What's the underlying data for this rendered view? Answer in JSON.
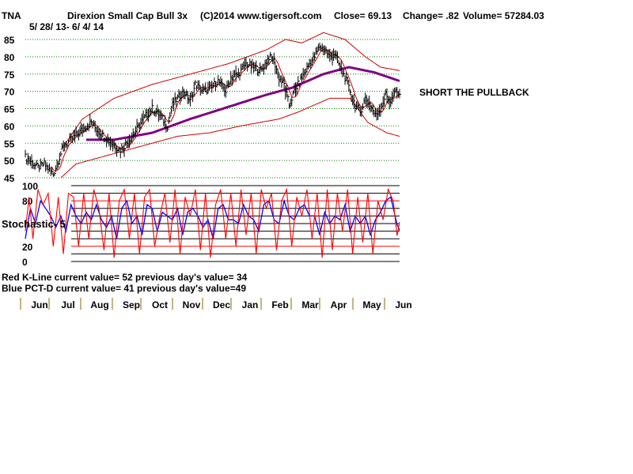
{
  "header": {
    "ticker": "TNA",
    "name": "Direxion Small Cap Bull 3x",
    "site": "(C)2014 www.tigersoft.com",
    "close": "Close=  69.13",
    "change": "Change= .82",
    "volume": "Volume= 57284.03",
    "date_range": "5/ 28/ 13- 6/ 4/ 14"
  },
  "annotation": "SHORT THE PULLBACK",
  "stochastic_label": "Stochastic- 5",
  "footer": {
    "red_line": "Red K-Line current value= 52 previous day's value= 34",
    "blue_line": "Blue PCT-D current value= 41 previous day's value=49"
  },
  "colors": {
    "price_bars": "#000000",
    "bands": "#cc0000",
    "ma": "#800080",
    "k_line": "#ff0000",
    "d_line": "#0000ff",
    "grid": "#008000"
  },
  "chart_data": [
    {
      "type": "ohlc",
      "ylim": [
        45,
        85
      ],
      "yticks": [
        45,
        50,
        55,
        60,
        65,
        70,
        75,
        80,
        85
      ],
      "months": [
        "Jun",
        "Jul",
        "Aug",
        "Sep",
        "Oct",
        "Nov",
        "Dec",
        "Jan",
        "Feb",
        "Mar",
        "Apr",
        "May",
        "Jun"
      ],
      "price_anchors": [
        [
          0,
          51
        ],
        [
          10,
          48
        ],
        [
          15,
          49
        ],
        [
          22,
          46
        ],
        [
          26,
          50
        ],
        [
          30,
          54
        ],
        [
          36,
          56
        ],
        [
          42,
          58
        ],
        [
          48,
          60
        ],
        [
          52,
          61
        ],
        [
          56,
          59
        ],
        [
          62,
          57
        ],
        [
          68,
          55
        ],
        [
          75,
          53
        ],
        [
          82,
          56
        ],
        [
          88,
          59
        ],
        [
          95,
          63
        ],
        [
          100,
          65
        ],
        [
          106,
          63
        ],
        [
          112,
          60
        ],
        [
          116,
          66
        ],
        [
          120,
          68
        ],
        [
          125,
          70
        ],
        [
          130,
          67
        ],
        [
          134,
          72
        ],
        [
          140,
          70
        ],
        [
          146,
          71
        ],
        [
          152,
          73
        ],
        [
          158,
          70
        ],
        [
          162,
          74
        ],
        [
          168,
          75
        ],
        [
          174,
          78
        ],
        [
          180,
          77
        ],
        [
          186,
          76
        ],
        [
          192,
          80
        ],
        [
          196,
          79
        ],
        [
          200,
          74
        ],
        [
          204,
          72
        ],
        [
          208,
          66
        ],
        [
          212,
          70
        ],
        [
          218,
          74
        ],
        [
          224,
          78
        ],
        [
          228,
          80
        ],
        [
          232,
          83
        ],
        [
          236,
          82
        ],
        [
          240,
          80
        ],
        [
          244,
          81
        ],
        [
          248,
          77
        ],
        [
          252,
          74
        ],
        [
          256,
          70
        ],
        [
          260,
          66
        ],
        [
          264,
          64
        ],
        [
          268,
          68
        ],
        [
          272,
          66
        ],
        [
          276,
          63
        ],
        [
          280,
          65
        ],
        [
          284,
          69
        ],
        [
          288,
          67
        ],
        [
          292,
          70
        ],
        [
          295,
          69.13
        ]
      ],
      "ma_anchors": [
        [
          48,
          56
        ],
        [
          70,
          56
        ],
        [
          100,
          58
        ],
        [
          130,
          62
        ],
        [
          160,
          65.5
        ],
        [
          190,
          69
        ],
        [
          210,
          71
        ],
        [
          235,
          75
        ],
        [
          255,
          77
        ],
        [
          275,
          75.5
        ],
        [
          295,
          73
        ]
      ],
      "upper_band_anchors": [
        [
          28,
          53
        ],
        [
          45,
          62
        ],
        [
          70,
          68
        ],
        [
          100,
          72
        ],
        [
          130,
          75
        ],
        [
          160,
          78
        ],
        [
          190,
          82
        ],
        [
          205,
          85
        ],
        [
          218,
          84
        ],
        [
          235,
          87
        ],
        [
          252,
          85
        ],
        [
          268,
          80
        ],
        [
          280,
          77
        ],
        [
          295,
          76
        ]
      ],
      "lower_band_anchors": [
        [
          28,
          45
        ],
        [
          40,
          49
        ],
        [
          60,
          51
        ],
        [
          80,
          53
        ],
        [
          100,
          55
        ],
        [
          120,
          57
        ],
        [
          145,
          58
        ],
        [
          170,
          60
        ],
        [
          200,
          62
        ],
        [
          215,
          64
        ],
        [
          240,
          68
        ],
        [
          256,
          68
        ],
        [
          270,
          61
        ],
        [
          285,
          58
        ],
        [
          295,
          57
        ]
      ]
    },
    {
      "type": "line",
      "ylim": [
        0,
        100
      ],
      "yticks": [
        0,
        20,
        80,
        100
      ],
      "series": [
        {
          "name": "Red K-Line",
          "anchors": [
            [
              0,
              40
            ],
            [
              3,
              85
            ],
            [
              6,
              30
            ],
            [
              10,
              95
            ],
            [
              14,
              75
            ],
            [
              18,
              90
            ],
            [
              22,
              20
            ],
            [
              26,
              85
            ],
            [
              30,
              10
            ],
            [
              34,
              90
            ],
            [
              38,
              85
            ],
            [
              42,
              20
            ],
            [
              46,
              90
            ],
            [
              50,
              30
            ],
            [
              54,
              95
            ],
            [
              58,
              70
            ],
            [
              62,
              15
            ],
            [
              66,
              90
            ],
            [
              70,
              5
            ],
            [
              74,
              80
            ],
            [
              78,
              95
            ],
            [
              82,
              30
            ],
            [
              86,
              90
            ],
            [
              90,
              10
            ],
            [
              94,
              85
            ],
            [
              98,
              95
            ],
            [
              102,
              20
            ],
            [
              106,
              60
            ],
            [
              110,
              90
            ],
            [
              114,
              25
            ],
            [
              118,
              95
            ],
            [
              122,
              10
            ],
            [
              126,
              85
            ],
            [
              130,
              60
            ],
            [
              134,
              95
            ],
            [
              138,
              15
            ],
            [
              142,
              90
            ],
            [
              146,
              5
            ],
            [
              150,
              75
            ],
            [
              154,
              95
            ],
            [
              158,
              30
            ],
            [
              162,
              90
            ],
            [
              166,
              20
            ],
            [
              170,
              95
            ],
            [
              174,
              35
            ],
            [
              178,
              90
            ],
            [
              182,
              10
            ],
            [
              186,
              95
            ],
            [
              190,
              70
            ],
            [
              194,
              90
            ],
            [
              198,
              15
            ],
            [
              202,
              80
            ],
            [
              206,
              95
            ],
            [
              210,
              20
            ],
            [
              214,
              85
            ],
            [
              218,
              60
            ],
            [
              222,
              95
            ],
            [
              226,
              30
            ],
            [
              230,
              90
            ],
            [
              234,
              5
            ],
            [
              238,
              95
            ],
            [
              242,
              15
            ],
            [
              246,
              90
            ],
            [
              250,
              40
            ],
            [
              254,
              95
            ],
            [
              258,
              10
            ],
            [
              262,
              85
            ],
            [
              266,
              25
            ],
            [
              270,
              90
            ],
            [
              274,
              10
            ],
            [
              278,
              80
            ],
            [
              282,
              55
            ],
            [
              286,
              95
            ],
            [
              290,
              80
            ],
            [
              293,
              34
            ],
            [
              295,
              52
            ]
          ]
        },
        {
          "name": "Blue PCT-D",
          "anchors": [
            [
              0,
              30
            ],
            [
              4,
              70
            ],
            [
              8,
              50
            ],
            [
              12,
              80
            ],
            [
              16,
              70
            ],
            [
              20,
              60
            ],
            [
              24,
              45
            ],
            [
              28,
              60
            ],
            [
              32,
              40
            ],
            [
              36,
              75
            ],
            [
              40,
              60
            ],
            [
              44,
              50
            ],
            [
              48,
              65
            ],
            [
              52,
              55
            ],
            [
              56,
              75
            ],
            [
              60,
              55
            ],
            [
              64,
              45
            ],
            [
              68,
              60
            ],
            [
              72,
              30
            ],
            [
              76,
              70
            ],
            [
              80,
              80
            ],
            [
              84,
              50
            ],
            [
              88,
              60
            ],
            [
              92,
              35
            ],
            [
              96,
              75
            ],
            [
              100,
              70
            ],
            [
              104,
              40
            ],
            [
              108,
              65
            ],
            [
              112,
              60
            ],
            [
              116,
              55
            ],
            [
              120,
              70
            ],
            [
              124,
              35
            ],
            [
              128,
              65
            ],
            [
              132,
              70
            ],
            [
              136,
              60
            ],
            [
              140,
              45
            ],
            [
              144,
              55
            ],
            [
              148,
              30
            ],
            [
              152,
              70
            ],
            [
              156,
              75
            ],
            [
              160,
              55
            ],
            [
              164,
              55
            ],
            [
              168,
              50
            ],
            [
              172,
              75
            ],
            [
              176,
              60
            ],
            [
              180,
              55
            ],
            [
              184,
              40
            ],
            [
              188,
              75
            ],
            [
              192,
              80
            ],
            [
              196,
              55
            ],
            [
              200,
              50
            ],
            [
              204,
              80
            ],
            [
              208,
              60
            ],
            [
              212,
              55
            ],
            [
              216,
              70
            ],
            [
              220,
              75
            ],
            [
              224,
              60
            ],
            [
              228,
              60
            ],
            [
              232,
              35
            ],
            [
              236,
              65
            ],
            [
              240,
              50
            ],
            [
              244,
              60
            ],
            [
              248,
              55
            ],
            [
              252,
              75
            ],
            [
              256,
              40
            ],
            [
              260,
              60
            ],
            [
              264,
              50
            ],
            [
              268,
              60
            ],
            [
              272,
              35
            ],
            [
              276,
              55
            ],
            [
              280,
              65
            ],
            [
              284,
              80
            ],
            [
              288,
              85
            ],
            [
              293,
              49
            ],
            [
              295,
              41
            ]
          ]
        }
      ]
    }
  ]
}
